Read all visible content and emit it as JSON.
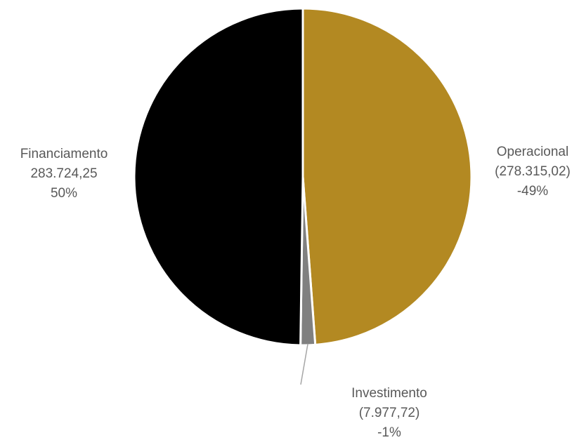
{
  "chart_data": {
    "type": "pie",
    "title": "",
    "slices": [
      {
        "category": "Operacional",
        "value": -278315.02,
        "value_label": "(278.315,02)",
        "percent_label": "-49%",
        "color": "#B38922"
      },
      {
        "category": "Investimento",
        "value": -7977.72,
        "value_label": "(7.977,72)",
        "percent_label": "-1%",
        "color": "#808080"
      },
      {
        "category": "Financiamento",
        "value": 283724.25,
        "value_label": "283.724,25",
        "percent_label": "50%",
        "color": "#000000"
      }
    ],
    "legend": "none",
    "slice_border_color": "#FFFFFF",
    "leader_line_color": "#A6A6A6"
  }
}
